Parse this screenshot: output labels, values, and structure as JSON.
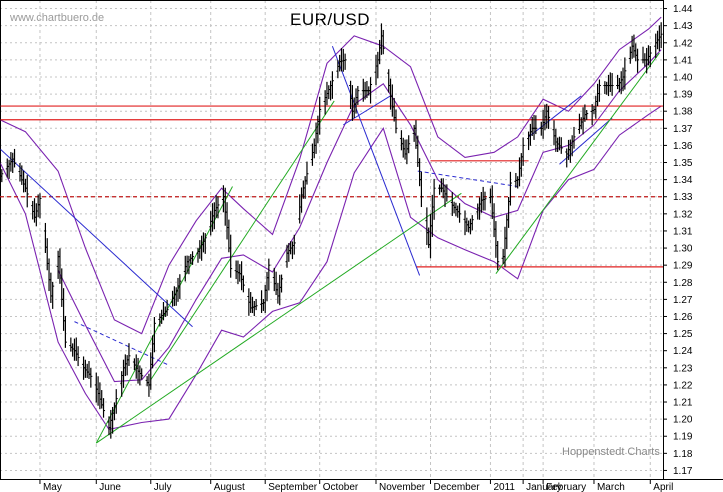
{
  "chart_data": {
    "type": "bar",
    "title": "EUR/USD",
    "source_label": "www.chartbuero.de",
    "credit": "Hoppenstedt Charts",
    "ylim": [
      1.165,
      1.445
    ],
    "y_ticks": [
      1.17,
      1.18,
      1.19,
      1.2,
      1.21,
      1.22,
      1.23,
      1.24,
      1.25,
      1.26,
      1.27,
      1.28,
      1.29,
      1.3,
      1.31,
      1.32,
      1.33,
      1.34,
      1.35,
      1.36,
      1.37,
      1.38,
      1.39,
      1.4,
      1.41,
      1.42,
      1.43,
      1.44
    ],
    "x_labels": [
      "May",
      "June",
      "July",
      "August",
      "September",
      "October",
      "November",
      "December",
      "2011",
      "January",
      "February",
      "March",
      "April"
    ],
    "x_label_dates": [
      "2010-04-30",
      "2010-05-31",
      "2010-06-30",
      "2010-08-02",
      "2010-09-01",
      "2010-10-01",
      "2010-11-01",
      "2010-12-01",
      "2011-01-03",
      "2011-01-21",
      "2011-02-01",
      "2011-03-01",
      "2011-04-01"
    ],
    "x_range": [
      "2010-04-08",
      "2011-04-08"
    ],
    "grid": true,
    "price_path": [
      [
        "2010-04-08",
        1.342
      ],
      [
        "2010-04-15",
        1.352
      ],
      [
        "2010-04-22",
        1.335
      ],
      [
        "2010-04-27",
        1.318
      ],
      [
        "2010-04-30",
        1.329
      ],
      [
        "2010-05-06",
        1.272
      ],
      [
        "2010-05-10",
        1.295
      ],
      [
        "2010-05-14",
        1.245
      ],
      [
        "2010-05-19",
        1.24
      ],
      [
        "2010-05-24",
        1.23
      ],
      [
        "2010-05-28",
        1.225
      ],
      [
        "2010-06-01",
        1.215
      ],
      [
        "2010-06-07",
        1.195
      ],
      [
        "2010-06-11",
        1.212
      ],
      [
        "2010-06-15",
        1.23
      ],
      [
        "2010-06-18",
        1.237
      ],
      [
        "2010-06-23",
        1.228
      ],
      [
        "2010-06-29",
        1.22
      ],
      [
        "2010-07-02",
        1.256
      ],
      [
        "2010-07-09",
        1.264
      ],
      [
        "2010-07-14",
        1.275
      ],
      [
        "2010-07-20",
        1.292
      ],
      [
        "2010-07-26",
        1.298
      ],
      [
        "2010-07-30",
        1.306
      ],
      [
        "2010-08-04",
        1.322
      ],
      [
        "2010-08-09",
        1.33
      ],
      [
        "2010-08-11",
        1.312
      ],
      [
        "2010-08-13",
        1.288
      ],
      [
        "2010-08-18",
        1.285
      ],
      [
        "2010-08-24",
        1.265
      ],
      [
        "2010-08-31",
        1.268
      ],
      [
        "2010-09-03",
        1.29
      ],
      [
        "2010-09-08",
        1.272
      ],
      [
        "2010-09-13",
        1.297
      ],
      [
        "2010-09-17",
        1.303
      ],
      [
        "2010-09-21",
        1.331
      ],
      [
        "2010-09-28",
        1.36
      ],
      [
        "2010-10-01",
        1.381
      ],
      [
        "2010-10-07",
        1.395
      ],
      [
        "2010-10-12",
        1.409
      ],
      [
        "2010-10-15",
        1.41
      ],
      [
        "2010-10-19",
        1.38
      ],
      [
        "2010-10-22",
        1.392
      ],
      [
        "2010-10-28",
        1.392
      ],
      [
        "2010-11-02",
        1.41
      ],
      [
        "2010-11-04",
        1.424
      ],
      [
        "2010-11-08",
        1.395
      ],
      [
        "2010-11-12",
        1.37
      ],
      [
        "2010-11-17",
        1.355
      ],
      [
        "2010-11-22",
        1.37
      ],
      [
        "2010-11-26",
        1.33
      ],
      [
        "2010-11-30",
        1.302
      ],
      [
        "2010-12-03",
        1.335
      ],
      [
        "2010-12-07",
        1.335
      ],
      [
        "2010-12-13",
        1.325
      ],
      [
        "2010-12-17",
        1.32
      ],
      [
        "2010-12-22",
        1.312
      ],
      [
        "2010-12-29",
        1.328
      ],
      [
        "2011-01-03",
        1.33
      ],
      [
        "2011-01-07",
        1.292
      ],
      [
        "2011-01-10",
        1.295
      ],
      [
        "2011-01-14",
        1.338
      ],
      [
        "2011-01-18",
        1.34
      ],
      [
        "2011-01-21",
        1.36
      ],
      [
        "2011-01-26",
        1.37
      ],
      [
        "2011-01-31",
        1.37
      ],
      [
        "2011-02-03",
        1.38
      ],
      [
        "2011-02-08",
        1.362
      ],
      [
        "2011-02-14",
        1.355
      ],
      [
        "2011-02-18",
        1.365
      ],
      [
        "2011-02-24",
        1.378
      ],
      [
        "2011-03-01",
        1.381
      ],
      [
        "2011-03-04",
        1.395
      ],
      [
        "2011-03-09",
        1.395
      ],
      [
        "2011-03-14",
        1.395
      ],
      [
        "2011-03-17",
        1.4
      ],
      [
        "2011-03-22",
        1.418
      ],
      [
        "2011-03-25",
        1.41
      ],
      [
        "2011-03-30",
        1.41
      ],
      [
        "2011-04-04",
        1.42
      ],
      [
        "2011-04-07",
        1.425
      ]
    ],
    "horizontal_lines": [
      {
        "y": 1.383,
        "color": "#e02020",
        "style": "solid",
        "from": "2010-04-08",
        "to": "2011-04-08"
      },
      {
        "y": 1.375,
        "color": "#e02020",
        "style": "solid",
        "from": "2010-04-08",
        "to": "2011-04-08"
      },
      {
        "y": 1.33,
        "color": "#c01818",
        "style": "dashed",
        "from": "2010-04-08",
        "to": "2011-04-08"
      },
      {
        "y": 1.289,
        "color": "#e02020",
        "style": "solid",
        "from": "2010-11-23",
        "to": "2011-04-08"
      },
      {
        "y": 1.351,
        "color": "#e02020",
        "style": "solid",
        "from": "2010-12-01",
        "to": "2011-01-24"
      }
    ],
    "trend_lines": [
      {
        "color": "#2a2ad0",
        "style": "solid",
        "points": [
          [
            "2010-04-08",
            1.358
          ],
          [
            "2010-07-23",
            1.254
          ]
        ]
      },
      {
        "color": "#2a2ad0",
        "style": "dashed",
        "points": [
          [
            "2010-05-19",
            1.257
          ],
          [
            "2010-07-09",
            1.232
          ]
        ]
      },
      {
        "color": "#2a2ad0",
        "style": "solid",
        "points": [
          [
            "2010-10-08",
            1.418
          ],
          [
            "2010-11-25",
            1.284
          ]
        ]
      },
      {
        "color": "#2a2ad0",
        "style": "solid",
        "points": [
          [
            "2010-10-14",
            1.372
          ],
          [
            "2010-11-09",
            1.389
          ]
        ]
      },
      {
        "color": "#2a2ad0",
        "style": "dashed",
        "points": [
          [
            "2010-11-24",
            1.345
          ],
          [
            "2011-01-18",
            1.336
          ]
        ]
      },
      {
        "color": "#2a2ad0",
        "style": "solid",
        "points": [
          [
            "2011-01-24",
            1.365
          ],
          [
            "2011-02-22",
            1.389
          ]
        ]
      },
      {
        "color": "#2a2ad0",
        "style": "solid",
        "points": [
          [
            "2011-02-10",
            1.349
          ],
          [
            "2011-03-11",
            1.376
          ]
        ]
      },
      {
        "color": "#22aa22",
        "style": "solid",
        "points": [
          [
            "2010-05-31",
            1.186
          ],
          [
            "2010-08-14",
            1.336
          ]
        ]
      },
      {
        "color": "#22aa22",
        "style": "solid",
        "points": [
          [
            "2010-06-30",
            1.223
          ],
          [
            "2010-10-09",
            1.386
          ]
        ]
      },
      {
        "color": "#22aa22",
        "style": "solid",
        "points": [
          [
            "2010-05-31",
            1.186
          ],
          [
            "2010-12-18",
            1.332
          ]
        ]
      },
      {
        "color": "#22aa22",
        "style": "solid",
        "points": [
          [
            "2011-01-06",
            1.285
          ],
          [
            "2011-04-06",
            1.414
          ]
        ]
      }
    ],
    "bollinger": {
      "color": "#7a22b0",
      "upper": [
        [
          "2010-04-08",
          1.375
        ],
        [
          "2010-04-22",
          1.368
        ],
        [
          "2010-05-10",
          1.345
        ],
        [
          "2010-05-25",
          1.3
        ],
        [
          "2010-06-10",
          1.258
        ],
        [
          "2010-06-25",
          1.25
        ],
        [
          "2010-07-10",
          1.29
        ],
        [
          "2010-07-25",
          1.316
        ],
        [
          "2010-08-08",
          1.335
        ],
        [
          "2010-08-20",
          1.323
        ],
        [
          "2010-09-05",
          1.308
        ],
        [
          "2010-09-20",
          1.352
        ],
        [
          "2010-10-05",
          1.408
        ],
        [
          "2010-10-20",
          1.424
        ],
        [
          "2010-11-05",
          1.418
        ],
        [
          "2010-11-20",
          1.406
        ],
        [
          "2010-12-05",
          1.365
        ],
        [
          "2010-12-20",
          1.353
        ],
        [
          "2011-01-05",
          1.356
        ],
        [
          "2011-01-18",
          1.365
        ],
        [
          "2011-02-01",
          1.387
        ],
        [
          "2011-02-15",
          1.38
        ],
        [
          "2011-03-01",
          1.396
        ],
        [
          "2011-03-15",
          1.416
        ],
        [
          "2011-03-31",
          1.428
        ],
        [
          "2011-04-07",
          1.435
        ]
      ],
      "middle": [
        [
          "2010-05-10",
          1.287
        ],
        [
          "2010-05-25",
          1.255
        ],
        [
          "2010-06-10",
          1.222
        ],
        [
          "2010-06-25",
          1.223
        ],
        [
          "2010-07-10",
          1.242
        ],
        [
          "2010-07-25",
          1.27
        ],
        [
          "2010-08-08",
          1.294
        ],
        [
          "2010-08-20",
          1.296
        ],
        [
          "2010-09-05",
          1.286
        ],
        [
          "2010-09-20",
          1.312
        ],
        [
          "2010-10-05",
          1.35
        ],
        [
          "2010-10-20",
          1.384
        ],
        [
          "2010-11-05",
          1.396
        ],
        [
          "2010-11-20",
          1.372
        ],
        [
          "2010-12-05",
          1.34
        ],
        [
          "2010-12-20",
          1.326
        ],
        [
          "2011-01-05",
          1.318
        ],
        [
          "2011-01-18",
          1.322
        ],
        [
          "2011-02-01",
          1.356
        ],
        [
          "2011-02-15",
          1.36
        ],
        [
          "2011-03-01",
          1.372
        ],
        [
          "2011-03-15",
          1.392
        ],
        [
          "2011-03-31",
          1.408
        ],
        [
          "2011-04-07",
          1.416
        ]
      ],
      "lower": [
        [
          "2010-04-08",
          1.35
        ],
        [
          "2010-04-22",
          1.32
        ],
        [
          "2010-05-10",
          1.245
        ],
        [
          "2010-05-25",
          1.215
        ],
        [
          "2010-06-07",
          1.194
        ],
        [
          "2010-06-25",
          1.198
        ],
        [
          "2010-07-10",
          1.2
        ],
        [
          "2010-07-25",
          1.226
        ],
        [
          "2010-08-08",
          1.252
        ],
        [
          "2010-08-20",
          1.248
        ],
        [
          "2010-09-05",
          1.263
        ],
        [
          "2010-09-20",
          1.268
        ],
        [
          "2010-10-05",
          1.292
        ],
        [
          "2010-10-20",
          1.344
        ],
        [
          "2010-11-05",
          1.37
        ],
        [
          "2010-11-20",
          1.318
        ],
        [
          "2010-12-05",
          1.306
        ],
        [
          "2010-12-20",
          1.299
        ],
        [
          "2011-01-05",
          1.292
        ],
        [
          "2011-01-18",
          1.282
        ],
        [
          "2011-02-01",
          1.322
        ],
        [
          "2011-02-15",
          1.34
        ],
        [
          "2011-03-01",
          1.346
        ],
        [
          "2011-03-15",
          1.366
        ],
        [
          "2011-03-31",
          1.378
        ],
        [
          "2011-04-07",
          1.383
        ]
      ]
    }
  }
}
